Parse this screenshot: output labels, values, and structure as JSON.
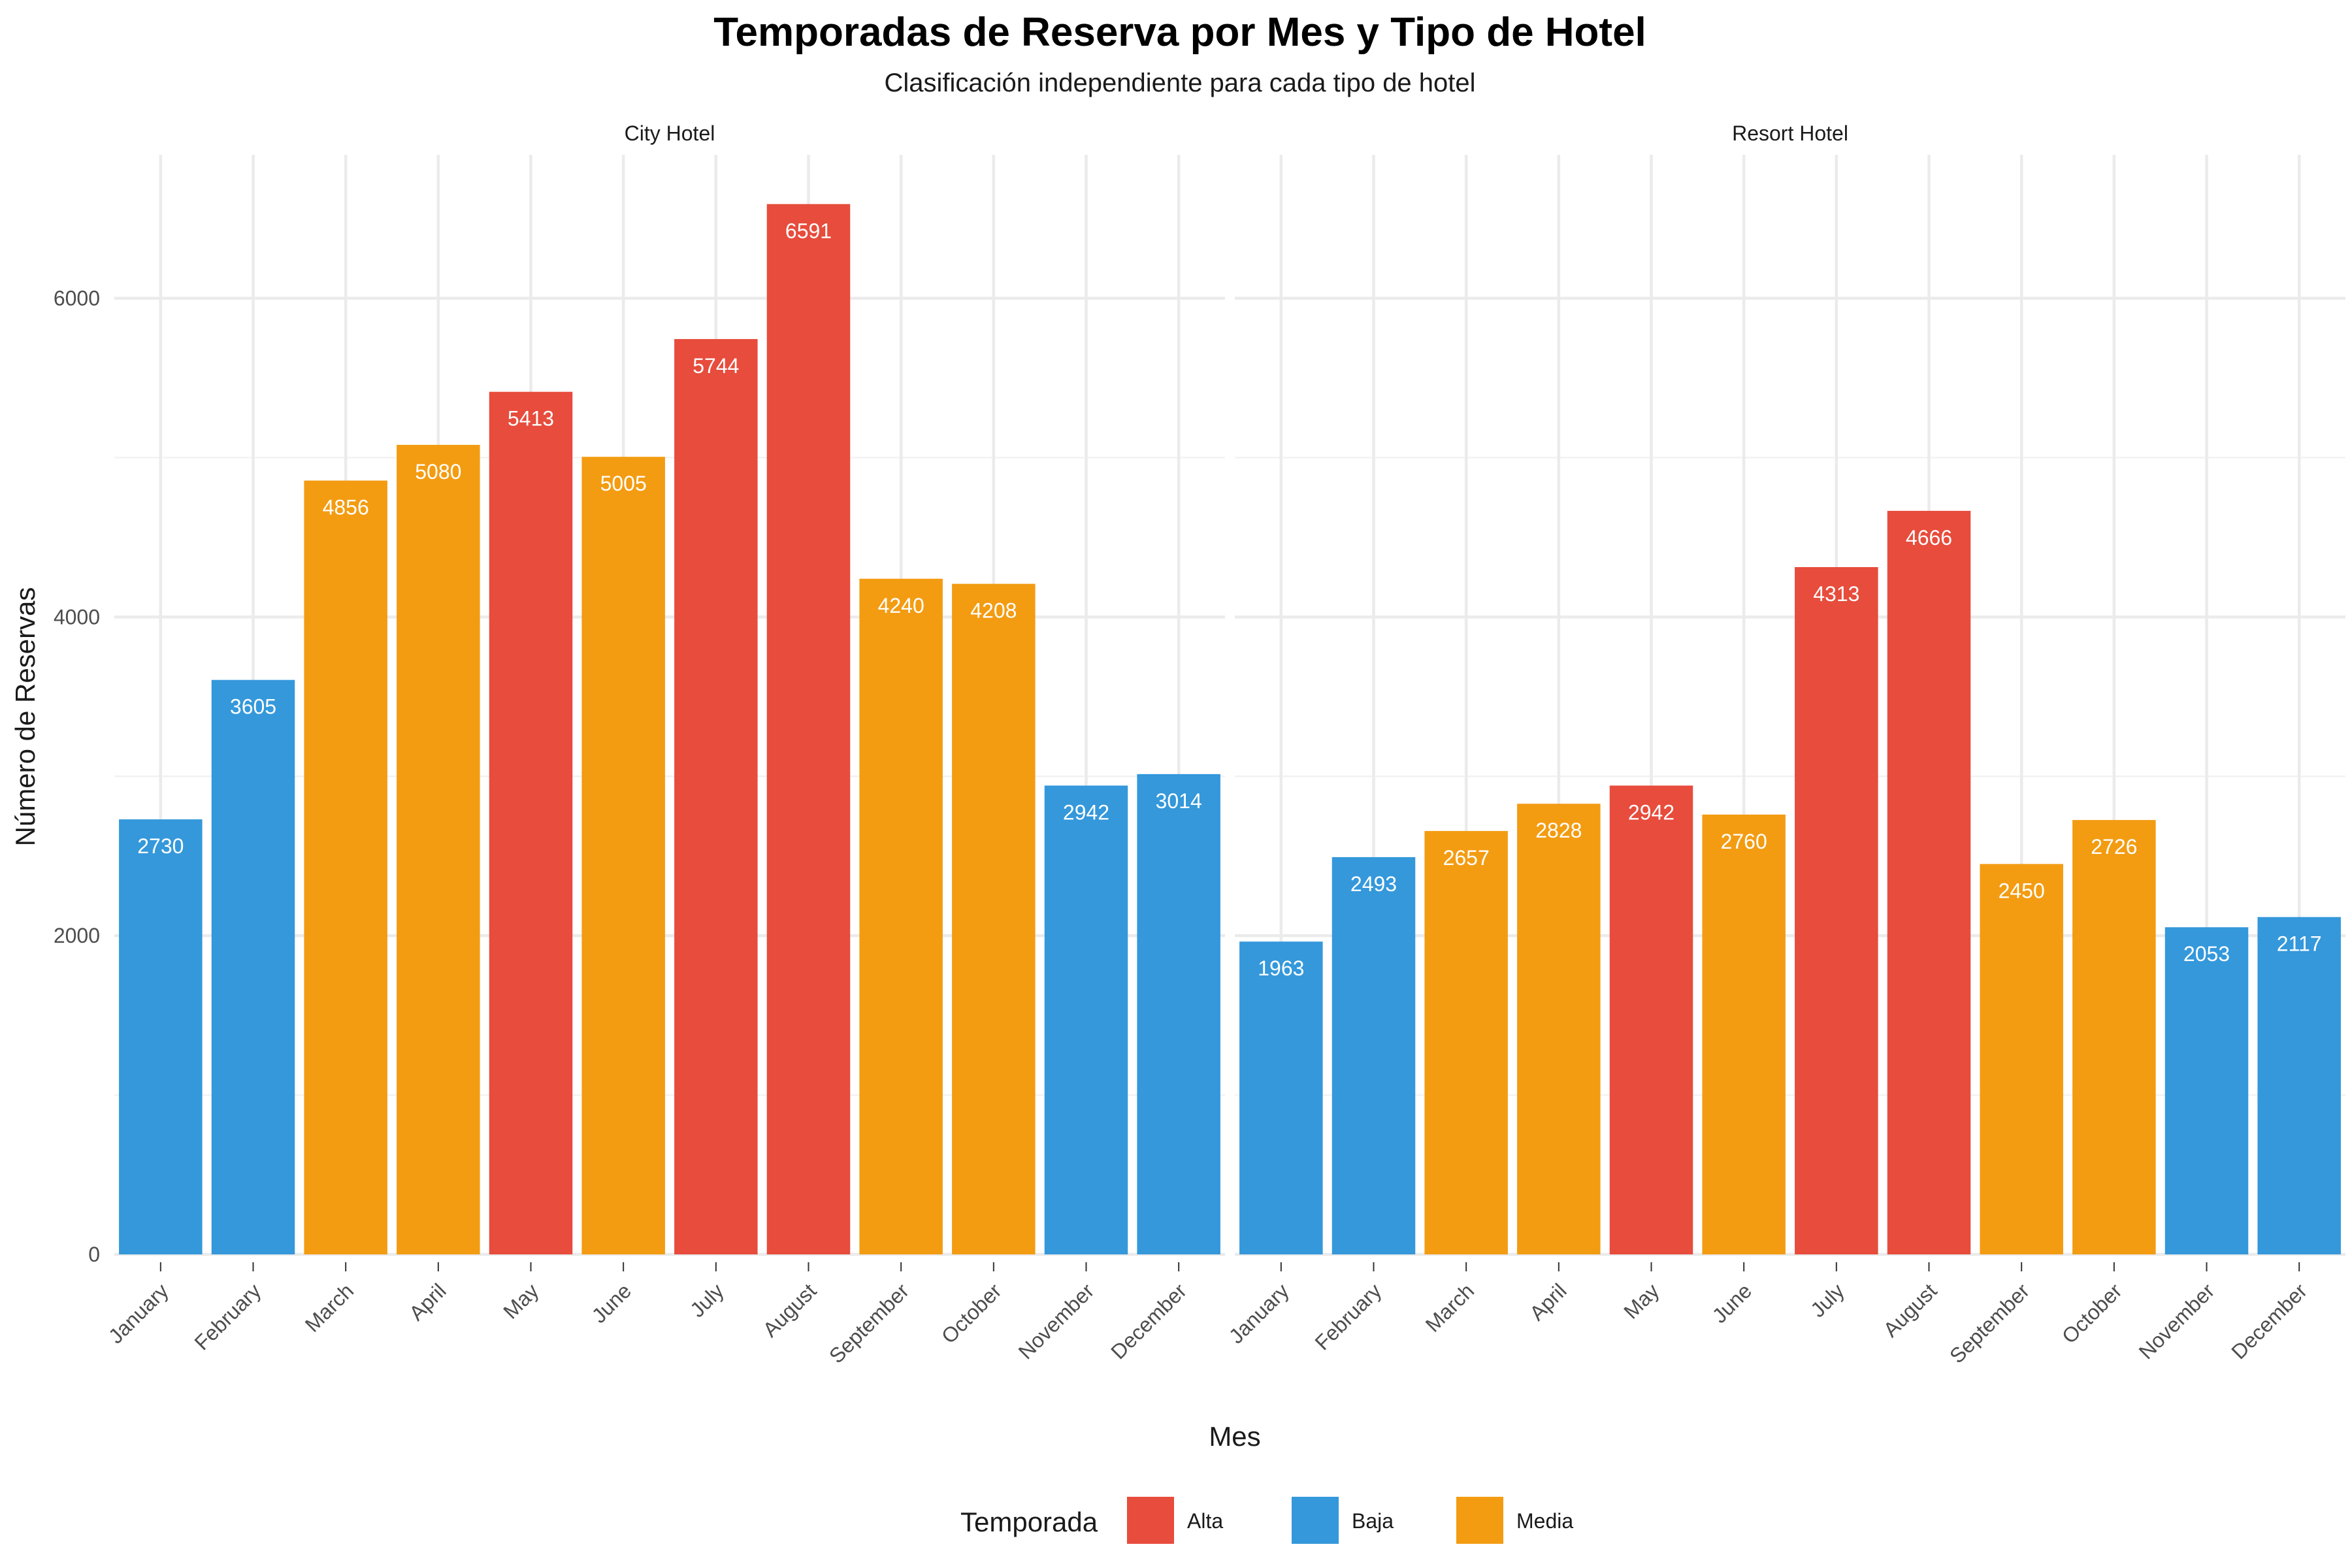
{
  "chart_data": {
    "type": "bar",
    "title": "Temporadas de Reserva por Mes y Tipo de Hotel",
    "subtitle": "Clasificación independiente para cada tipo de hotel",
    "xlabel": "Mes",
    "ylabel": "Número de Reservas",
    "ylim": [
      0,
      6900
    ],
    "yticks": [
      0,
      2000,
      4000,
      6000
    ],
    "grid": true,
    "categories": [
      "January",
      "February",
      "March",
      "April",
      "May",
      "June",
      "July",
      "August",
      "September",
      "October",
      "November",
      "December"
    ],
    "legend": {
      "title": "Temporada",
      "position": "bottom",
      "entries": [
        {
          "key": "Alta",
          "label": "Alta",
          "color": "#E74C3C"
        },
        {
          "key": "Baja",
          "label": "Baja",
          "color": "#3498DB"
        },
        {
          "key": "Media",
          "label": "Media",
          "color": "#F39C12"
        }
      ]
    },
    "panels": [
      {
        "name": "City Hotel",
        "values": [
          2730,
          3605,
          4856,
          5080,
          5413,
          5005,
          5744,
          6591,
          4240,
          4208,
          2942,
          3014
        ],
        "season": [
          "Baja",
          "Baja",
          "Media",
          "Media",
          "Alta",
          "Media",
          "Alta",
          "Alta",
          "Media",
          "Media",
          "Baja",
          "Baja"
        ]
      },
      {
        "name": "Resort Hotel",
        "values": [
          1963,
          2493,
          2657,
          2828,
          2942,
          2760,
          4313,
          4666,
          2450,
          2726,
          2053,
          2117
        ],
        "season": [
          "Baja",
          "Baja",
          "Media",
          "Media",
          "Alta",
          "Media",
          "Alta",
          "Alta",
          "Media",
          "Media",
          "Baja",
          "Baja"
        ]
      }
    ]
  }
}
